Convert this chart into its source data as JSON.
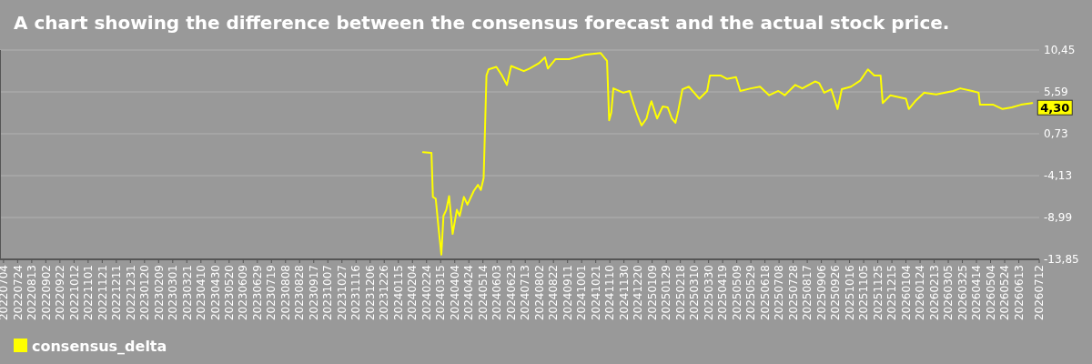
{
  "chart_data": {
    "type": "line",
    "title": "A chart showing the difference between the consensus forecast and the actual stock price.",
    "grid": "y",
    "legend": "bottom left",
    "marker": "none",
    "line_style": "solid",
    "xlim": [
      "2022-06-29",
      "2026-07-12"
    ],
    "ylim": [
      -13.85,
      10.45
    ],
    "yticks": [
      {
        "value": 10.45,
        "label": "10,45"
      },
      {
        "value": 5.59,
        "label": "5,59"
      },
      {
        "value": 0.73,
        "label": "0,73"
      },
      {
        "value": -4.13,
        "label": "-4,13"
      },
      {
        "value": -8.99,
        "label": "-8,99"
      },
      {
        "value": -13.85,
        "label": "-13,85"
      }
    ],
    "xticks": [
      {
        "value": "2022-07-04",
        "label": "20220704"
      },
      {
        "value": "2022-07-24",
        "label": "20220724"
      },
      {
        "value": "2022-08-13",
        "label": "20220813"
      },
      {
        "value": "2022-09-02",
        "label": "20220902"
      },
      {
        "value": "2022-09-22",
        "label": "20220922"
      },
      {
        "value": "2022-10-12",
        "label": "20221012"
      },
      {
        "value": "2022-11-01",
        "label": "20221101"
      },
      {
        "value": "2022-11-21",
        "label": "20221121"
      },
      {
        "value": "2022-12-11",
        "label": "20221211"
      },
      {
        "value": "2022-12-31",
        "label": "20221231"
      },
      {
        "value": "2023-01-20",
        "label": "20230120"
      },
      {
        "value": "2023-02-09",
        "label": "20230209"
      },
      {
        "value": "2023-03-01",
        "label": "20230301"
      },
      {
        "value": "2023-03-21",
        "label": "20230321"
      },
      {
        "value": "2023-04-10",
        "label": "20230410"
      },
      {
        "value": "2023-04-30",
        "label": "20230430"
      },
      {
        "value": "2023-05-20",
        "label": "20230520"
      },
      {
        "value": "2023-06-09",
        "label": "20230609"
      },
      {
        "value": "2023-06-29",
        "label": "20230629"
      },
      {
        "value": "2023-07-19",
        "label": "20230719"
      },
      {
        "value": "2023-08-08",
        "label": "20230808"
      },
      {
        "value": "2023-08-28",
        "label": "20230828"
      },
      {
        "value": "2023-09-17",
        "label": "20230917"
      },
      {
        "value": "2023-10-07",
        "label": "20231007"
      },
      {
        "value": "2023-10-27",
        "label": "20231027"
      },
      {
        "value": "2023-11-16",
        "label": "20231116"
      },
      {
        "value": "2023-12-06",
        "label": "20231206"
      },
      {
        "value": "2023-12-26",
        "label": "20231226"
      },
      {
        "value": "2024-01-15",
        "label": "20240115"
      },
      {
        "value": "2024-02-04",
        "label": "20240204"
      },
      {
        "value": "2024-02-24",
        "label": "20240224"
      },
      {
        "value": "2024-03-15",
        "label": "20240315"
      },
      {
        "value": "2024-04-04",
        "label": "20240404"
      },
      {
        "value": "2024-04-24",
        "label": "20240424"
      },
      {
        "value": "2024-05-14",
        "label": "20240514"
      },
      {
        "value": "2024-06-03",
        "label": "20240603"
      },
      {
        "value": "2024-06-23",
        "label": "20240623"
      },
      {
        "value": "2024-07-13",
        "label": "20240713"
      },
      {
        "value": "2024-08-02",
        "label": "20240802"
      },
      {
        "value": "2024-08-22",
        "label": "20240822"
      },
      {
        "value": "2024-09-11",
        "label": "20240911"
      },
      {
        "value": "2024-10-01",
        "label": "20241001"
      },
      {
        "value": "2024-10-21",
        "label": "20241021"
      },
      {
        "value": "2024-11-10",
        "label": "20241110"
      },
      {
        "value": "2024-11-30",
        "label": "20241130"
      },
      {
        "value": "2024-12-20",
        "label": "20241220"
      },
      {
        "value": "2025-01-09",
        "label": "20250109"
      },
      {
        "value": "2025-01-29",
        "label": "20250129"
      },
      {
        "value": "2025-02-18",
        "label": "20250218"
      },
      {
        "value": "2025-03-10",
        "label": "20250310"
      },
      {
        "value": "2025-03-30",
        "label": "20250330"
      },
      {
        "value": "2025-04-19",
        "label": "20250419"
      },
      {
        "value": "2025-05-09",
        "label": "20250509"
      },
      {
        "value": "2025-05-29",
        "label": "20250529"
      },
      {
        "value": "2025-06-18",
        "label": "20250618"
      },
      {
        "value": "2025-07-08",
        "label": "20250708"
      },
      {
        "value": "2025-07-28",
        "label": "20250728"
      },
      {
        "value": "2025-08-17",
        "label": "20250817"
      },
      {
        "value": "2025-09-06",
        "label": "20250906"
      },
      {
        "value": "2025-09-26",
        "label": "20250926"
      },
      {
        "value": "2025-10-16",
        "label": "20251016"
      },
      {
        "value": "2025-11-05",
        "label": "20251105"
      },
      {
        "value": "2025-11-25",
        "label": "20251125"
      },
      {
        "value": "2025-12-15",
        "label": "20251215"
      },
      {
        "value": "2026-01-04",
        "label": "20260104"
      },
      {
        "value": "2026-01-24",
        "label": "20260124"
      },
      {
        "value": "2026-02-13",
        "label": "20260213"
      },
      {
        "value": "2026-03-05",
        "label": "20260305"
      },
      {
        "value": "2026-03-25",
        "label": "20260325"
      },
      {
        "value": "2026-04-14",
        "label": "20260414"
      },
      {
        "value": "2026-05-04",
        "label": "20260504"
      },
      {
        "value": "2026-05-24",
        "label": "20260524"
      },
      {
        "value": "2026-06-13",
        "label": "20260613"
      },
      {
        "value": "2026-07-12",
        "label": "20260712"
      }
    ],
    "series": [
      {
        "name": "consensus_delta",
        "color": "#ffff00",
        "x": [
          "2024-02-19",
          "2024-03-02",
          "2024-03-04",
          "2024-03-08",
          "2024-03-12",
          "2024-03-16",
          "2024-03-19",
          "2024-03-23",
          "2024-03-27",
          "2024-04-01",
          "2024-04-07",
          "2024-04-11",
          "2024-04-17",
          "2024-04-22",
          "2024-05-01",
          "2024-05-07",
          "2024-05-11",
          "2024-05-15",
          "2024-05-19",
          "2024-05-22",
          "2024-06-02",
          "2024-06-10",
          "2024-06-17",
          "2024-06-23",
          "2024-07-11",
          "2024-07-19",
          "2024-08-01",
          "2024-08-10",
          "2024-08-14",
          "2024-08-25",
          "2024-09-13",
          "2024-10-05",
          "2024-10-28",
          "2024-11-06",
          "2024-11-09",
          "2024-11-12",
          "2024-11-15",
          "2024-11-29",
          "2024-12-08",
          "2024-12-14",
          "2024-12-19",
          "2024-12-25",
          "2025-01-01",
          "2025-01-05",
          "2025-01-08",
          "2025-01-16",
          "2025-01-24",
          "2025-01-31",
          "2025-02-06",
          "2025-02-11",
          "2025-02-15",
          "2025-02-21",
          "2025-03-02",
          "2025-03-17",
          "2025-03-28",
          "2025-04-01",
          "2025-04-16",
          "2025-04-25",
          "2025-05-08",
          "2025-05-14",
          "2025-05-29",
          "2025-06-11",
          "2025-06-24",
          "2025-07-07",
          "2025-07-16",
          "2025-07-31",
          "2025-08-10",
          "2025-08-28",
          "2025-09-03",
          "2025-09-10",
          "2025-09-20",
          "2025-09-29",
          "2025-10-05",
          "2025-10-18",
          "2025-10-31",
          "2025-11-11",
          "2025-11-20",
          "2025-11-29",
          "2025-12-02",
          "2025-12-13",
          "2026-01-04",
          "2026-01-08",
          "2026-01-17",
          "2026-01-30",
          "2026-02-16",
          "2026-03-12",
          "2026-03-22",
          "2026-04-08",
          "2026-04-17",
          "2026-04-19",
          "2026-05-08",
          "2026-05-21",
          "2026-06-03",
          "2026-06-16",
          "2026-07-02"
        ],
        "values": [
          -1.4,
          -1.5,
          -6.6,
          -6.8,
          -10.2,
          -13.3,
          -8.8,
          -8.1,
          -6.5,
          -10.9,
          -8.1,
          -8.8,
          -6.6,
          -7.5,
          -5.9,
          -5.2,
          -5.8,
          -4.4,
          7.5,
          8.2,
          8.5,
          7.5,
          6.4,
          8.6,
          8.0,
          8.3,
          8.9,
          9.6,
          8.3,
          9.4,
          9.4,
          9.9,
          10.1,
          9.2,
          2.3,
          3.2,
          6.0,
          5.5,
          5.7,
          4.1,
          2.9,
          1.7,
          2.5,
          3.8,
          4.5,
          2.5,
          3.9,
          3.8,
          2.5,
          2.0,
          3.4,
          5.9,
          6.2,
          4.8,
          5.7,
          7.5,
          7.5,
          7.1,
          7.3,
          5.7,
          6.0,
          6.2,
          5.2,
          5.7,
          5.2,
          6.4,
          6.0,
          6.8,
          6.6,
          5.5,
          5.9,
          3.6,
          5.9,
          6.2,
          6.9,
          8.2,
          7.5,
          7.5,
          4.3,
          5.2,
          4.8,
          3.6,
          4.5,
          5.5,
          5.3,
          5.7,
          6.0,
          5.7,
          5.5,
          4.1,
          4.1,
          3.6,
          3.8,
          4.1,
          4.3
        ]
      }
    ],
    "annotations": [
      {
        "text": "4,30",
        "x": "2026-07-02",
        "y": 4.3
      }
    ]
  }
}
